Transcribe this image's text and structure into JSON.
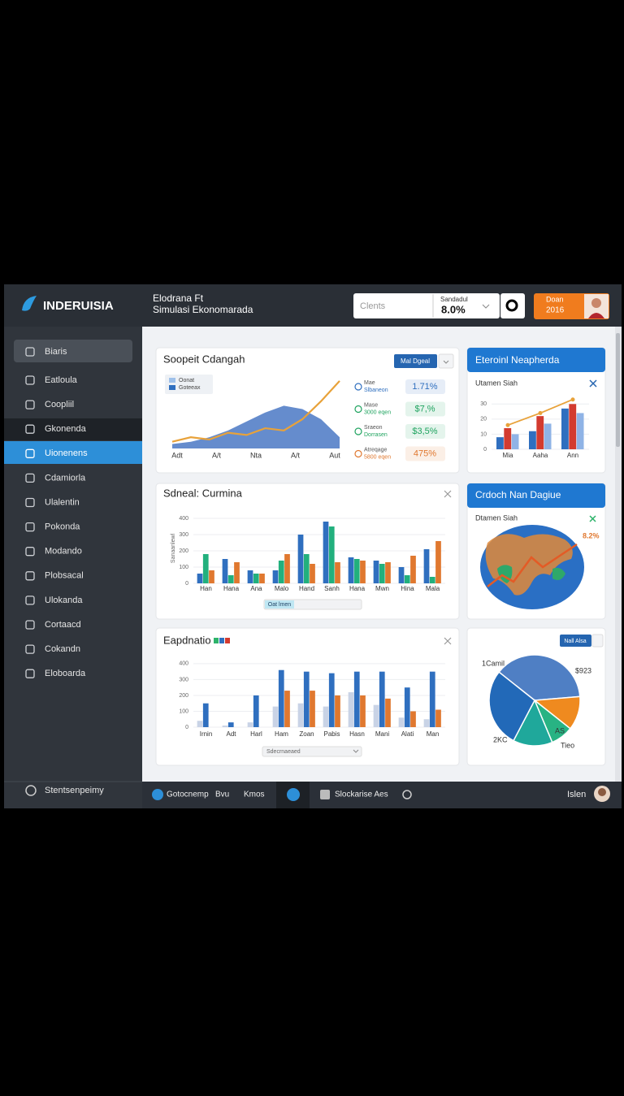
{
  "header": {
    "brand": "INDERUISIA",
    "title_line1": "Elodrana Ft",
    "title_line2": "Simulasi Ekonomarada",
    "search_placeholder": "Clents",
    "stat_label": "Sandadul",
    "stat_value": "8.0%",
    "badge_line1": "Doan",
    "badge_line2": "2016"
  },
  "sidebar": {
    "items": [
      "Biaris",
      "Eatloula",
      "Coopliil",
      "Gkonenda",
      "Uionenens",
      "Cdamiorla",
      "Ulalentin",
      "Pokonda",
      "Modando",
      "Plobsacal",
      "Ulokanda",
      "Cortaacd",
      "Cokandn",
      "Eloboarda"
    ],
    "active": 4,
    "footer": "Stentsenpeimy"
  },
  "panels": [
    {
      "title": "Soopeit Cdangah",
      "button": "Mal Dgeal",
      "legend": [
        {
          "name": "Oonat",
          "color": "#9fc1ea"
        },
        {
          "name": "Goteeax",
          "color": "#2f6fbf"
        }
      ],
      "chart": {
        "type": "area",
        "categories": [
          "Adt",
          "A/t",
          "Nta",
          "A/t",
          "Aut"
        ],
        "series": [
          {
            "color": "#3f6fc0",
            "values": [
              4,
              6,
              10,
              16,
              24,
              32,
              38,
              35,
              26,
              10
            ]
          },
          {
            "color": "#e8a23a",
            "values": [
              6,
              10,
              8,
              14,
              12,
              18,
              16,
              26,
              42,
              60
            ]
          }
        ],
        "ylim": [
          0,
          65
        ]
      },
      "metrics": [
        {
          "label1": "Mae",
          "label2": "Slbaneon",
          "value": "1.71%",
          "color": "#2f6fbf"
        },
        {
          "label1": "Mase",
          "label2": "3000 eqen",
          "value": "$7,%",
          "color": "#1fa35f"
        },
        {
          "label1": "Sraeon",
          "label2": "Dorrasen",
          "value": "$3,5%",
          "color": "#1fa35f"
        },
        {
          "label1": "Atreqage",
          "label2": "5800 eqen",
          "value": "475%",
          "color": "#e0782f"
        }
      ]
    },
    {
      "title": "Eteroinl Neapherda",
      "subtitle": "Utamen Siah",
      "chart": {
        "type": "bar",
        "categories": [
          "Mia",
          "Aaha",
          "Ann"
        ],
        "series": [
          {
            "color": "#2f6fbf",
            "values": [
              8,
              12,
              27
            ]
          },
          {
            "color": "#d33b2f",
            "values": [
              14,
              22,
              30
            ]
          },
          {
            "color": "#8fb3e6",
            "values": [
              10,
              17,
              24
            ]
          }
        ],
        "line": {
          "color": "#e8a23a",
          "values": [
            16,
            24,
            33
          ]
        },
        "ylim": [
          0,
          35
        ],
        "yticks": [
          0,
          10,
          20,
          30
        ]
      }
    },
    {
      "title": "Sdneal: Curmina",
      "ylabel": "Sanaanlewl",
      "dropdown": "Oat lmen",
      "chart": {
        "type": "bar",
        "categories": [
          "Han",
          "Hana",
          "Ana",
          "Malo",
          "Hand",
          "Sanh",
          "Hana",
          "Mwn",
          "Hina",
          "Mala"
        ],
        "series": [
          {
            "color": "#2f6fbf",
            "values": [
              60,
              150,
              80,
              80,
              300,
              380,
              160,
              140,
              100,
              210
            ]
          },
          {
            "color": "#22b07d",
            "values": [
              180,
              50,
              60,
              140,
              180,
              350,
              150,
              120,
              50,
              40
            ]
          },
          {
            "color": "#e0782f",
            "values": [
              80,
              130,
              60,
              180,
              120,
              130,
              140,
              130,
              170,
              260
            ]
          }
        ],
        "ylim": [
          0,
          450
        ],
        "yticks": [
          0,
          100,
          200,
          300,
          400
        ]
      }
    },
    {
      "title": "Crdoch Nan Dagiue",
      "subtitle": "Dtamen Siah",
      "value_label": "8.2%"
    },
    {
      "title": "Eapdnatio",
      "dropdown": "Sdecrnaeaed",
      "chart": {
        "type": "bar",
        "categories": [
          "Irnin",
          "Adt",
          "Harl",
          "Ham",
          "Zoan",
          "Pabis",
          "Hasn",
          "Mani",
          "Alati",
          "Man"
        ],
        "series": [
          {
            "color": "#c9d3e6",
            "values": [
              40,
              10,
              30,
              130,
              150,
              130,
              220,
              140,
              60,
              50
            ]
          },
          {
            "color": "#2f6fbf",
            "values": [
              150,
              30,
              200,
              360,
              350,
              340,
              350,
              350,
              250,
              350
            ]
          },
          {
            "color": "#e0782f",
            "values": [
              0,
              0,
              0,
              230,
              230,
              200,
              200,
              180,
              100,
              110
            ]
          }
        ],
        "ylim": [
          0,
          420
        ],
        "yticks": [
          0,
          100,
          200,
          300,
          400
        ]
      }
    },
    {
      "button": "Nall Alsa",
      "labels": [
        "1Camil",
        "$923",
        "2KC",
        "AS",
        "Tieo"
      ],
      "chart": {
        "type": "pie",
        "values": [
          38,
          12,
          8,
          14,
          28
        ],
        "colors": [
          "#4f7fc4",
          "#ef8a1f",
          "#28b383",
          "#1fa89b",
          "#2269b8"
        ]
      }
    }
  ],
  "bottom_bar": {
    "items": [
      "Gotocnemp",
      "Bvu",
      "Kmos",
      "Slockarise Aes"
    ],
    "user": "Islen"
  }
}
